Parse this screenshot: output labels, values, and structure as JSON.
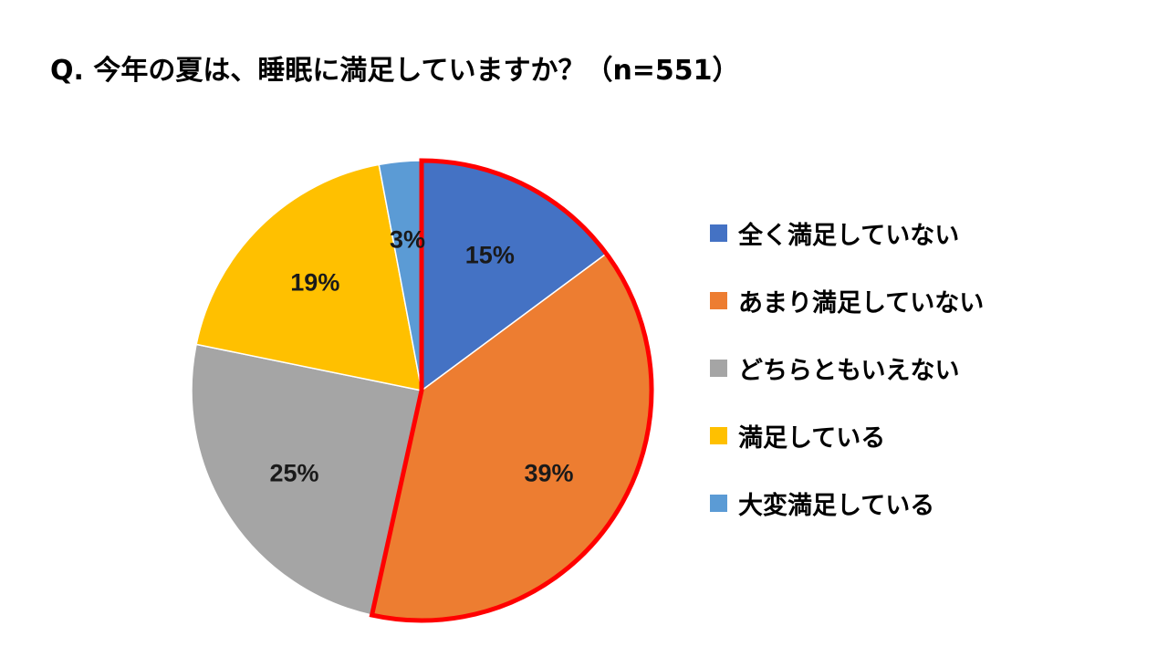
{
  "chart_data": {
    "type": "pie",
    "title": "Q. 今年の夏は、睡眠に満足していますか？（n=551）",
    "slices": [
      {
        "label": "全く満足していない",
        "value": 15,
        "display": "15%",
        "color": "#4472C4",
        "highlighted": true
      },
      {
        "label": "あまり満足していない",
        "value": 39,
        "display": "39%",
        "color": "#ED7D31",
        "highlighted": true
      },
      {
        "label": "どちらともいえない",
        "value": 25,
        "display": "25%",
        "color": "#A5A5A5",
        "highlighted": false
      },
      {
        "label": "満足している",
        "value": 19,
        "display": "19%",
        "color": "#FFC000",
        "highlighted": false
      },
      {
        "label": "大変満足している",
        "value": 3,
        "display": "3%",
        "color": "#5B9BD5",
        "highlighted": false
      }
    ],
    "start_angle_deg": 0,
    "direction": "clockwise",
    "legend_position": "right",
    "highlight_color": "#FF0000"
  }
}
